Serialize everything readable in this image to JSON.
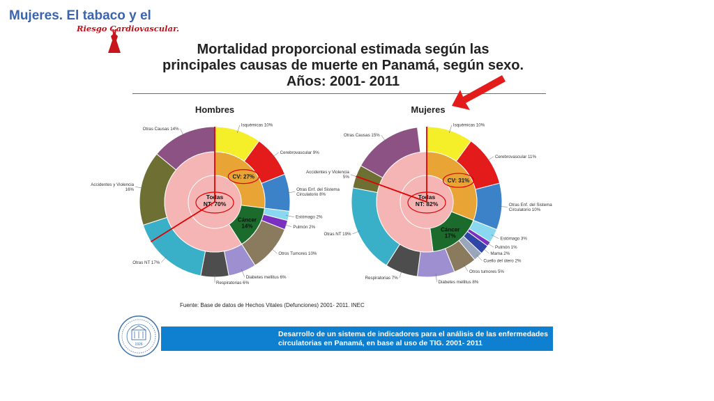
{
  "header": {
    "deck_title": "Mujeres. El tabaco y el",
    "deck_subtitle": "Riesgo Cardiovascular."
  },
  "slide": {
    "title": "Mortalidad proporcional estimada según las principales causas de muerte en Panamá, según sexo. Años: 2001- 2011",
    "source": "Fuente: Base de datos de Hechos Vitales (Defunciones) 2001- 2011. INEC",
    "banner": "Desarrollo de un sistema de indicadores para el análisis de las enfermedades circulatorias en Panamá, en base al uso de TIG. 2001- 2011",
    "seal_year": "1926"
  },
  "colors": {
    "cv_inner": "#e8a434",
    "cancer_inner": "#1a6b2c",
    "todas_inner": "#f5b5b5",
    "highlight": "#e00000",
    "banner": "#0f7fcf"
  },
  "chart_data": [
    {
      "type": "pie",
      "title": "Hombres",
      "center_label": [
        "Todas",
        "NT: 70%"
      ],
      "inner_ring": [
        {
          "label": [
            "CV: 27%"
          ],
          "value": 27,
          "color": "#e8a434"
        },
        {
          "label": [
            "Cáncer",
            "14%"
          ],
          "value": 14,
          "color": "#1a6b2c"
        }
      ],
      "outer_ring": [
        {
          "label": "Isquémicas 10%",
          "value": 10,
          "color": "#f5ef2a"
        },
        {
          "label": "Cerebrovascular 9%",
          "value": 9,
          "color": "#e41b1b"
        },
        {
          "label": "Otras Enf. del Sistema Circulatorio 8%",
          "value": 8,
          "color": "#3c82c8"
        },
        {
          "label": "Estómago 2%",
          "value": 2,
          "color": "#8ad8f0"
        },
        {
          "label": "Pulmón 2%",
          "value": 2,
          "color": "#7a2fc0"
        },
        {
          "label": "Otros Tumores 10%",
          "value": 10,
          "color": "#8a7a5e"
        },
        {
          "label": "Diabetes mellitus 6%",
          "value": 6,
          "color": "#9d8fd0"
        },
        {
          "label": "Respiratorias 6%",
          "value": 6,
          "color": "#4d4d4d"
        },
        {
          "label": "Otras NT 17%",
          "value": 17,
          "color": "#3ab0c8"
        },
        {
          "label": "Accidentes y Violencia 16%",
          "value": 16,
          "color": "#6e7033"
        },
        {
          "label": "Otras Causas 14%",
          "value": 14,
          "color": "#8c5283"
        }
      ]
    },
    {
      "type": "pie",
      "title": "Mujeres",
      "center_label": [
        "Todas",
        "NT: 82%"
      ],
      "inner_ring": [
        {
          "label": [
            "CV: 31%"
          ],
          "value": 31,
          "color": "#e8a434"
        },
        {
          "label": [
            "Cáncer",
            "17%"
          ],
          "value": 17,
          "color": "#1a6b2c"
        }
      ],
      "outer_ring": [
        {
          "label": "Isquémicas 10%",
          "value": 10,
          "color": "#f5ef2a"
        },
        {
          "label": "Cerebrovascular 11%",
          "value": 11,
          "color": "#e41b1b"
        },
        {
          "label": "Otras Enf. del Sistema Circulatorio 10%",
          "value": 10,
          "color": "#3c82c8"
        },
        {
          "label": "Estómago 3%",
          "value": 3,
          "color": "#8ad8f0"
        },
        {
          "label": "Pulmón 1%",
          "value": 1,
          "color": "#7a2fc0"
        },
        {
          "label": "Mama 2%",
          "value": 2,
          "color": "#2f46a8"
        },
        {
          "label": "Cuello del útero 2%",
          "value": 2,
          "color": "#9aa6bc"
        },
        {
          "label": "Otros tumores 5%",
          "value": 5,
          "color": "#8a7a5e"
        },
        {
          "label": "Diabetes mellitus 8%",
          "value": 8,
          "color": "#9d8fd0"
        },
        {
          "label": "Respiratorias 7%",
          "value": 7,
          "color": "#4d4d4d"
        },
        {
          "label": "Otras NT 19%",
          "value": 19,
          "color": "#3ab0c8"
        },
        {
          "label": "Accidentes y Violencia 5%",
          "value": 5,
          "color": "#6e7033"
        },
        {
          "label": "Otras Causas 15%",
          "value": 15,
          "color": "#8c5283"
        }
      ]
    }
  ]
}
